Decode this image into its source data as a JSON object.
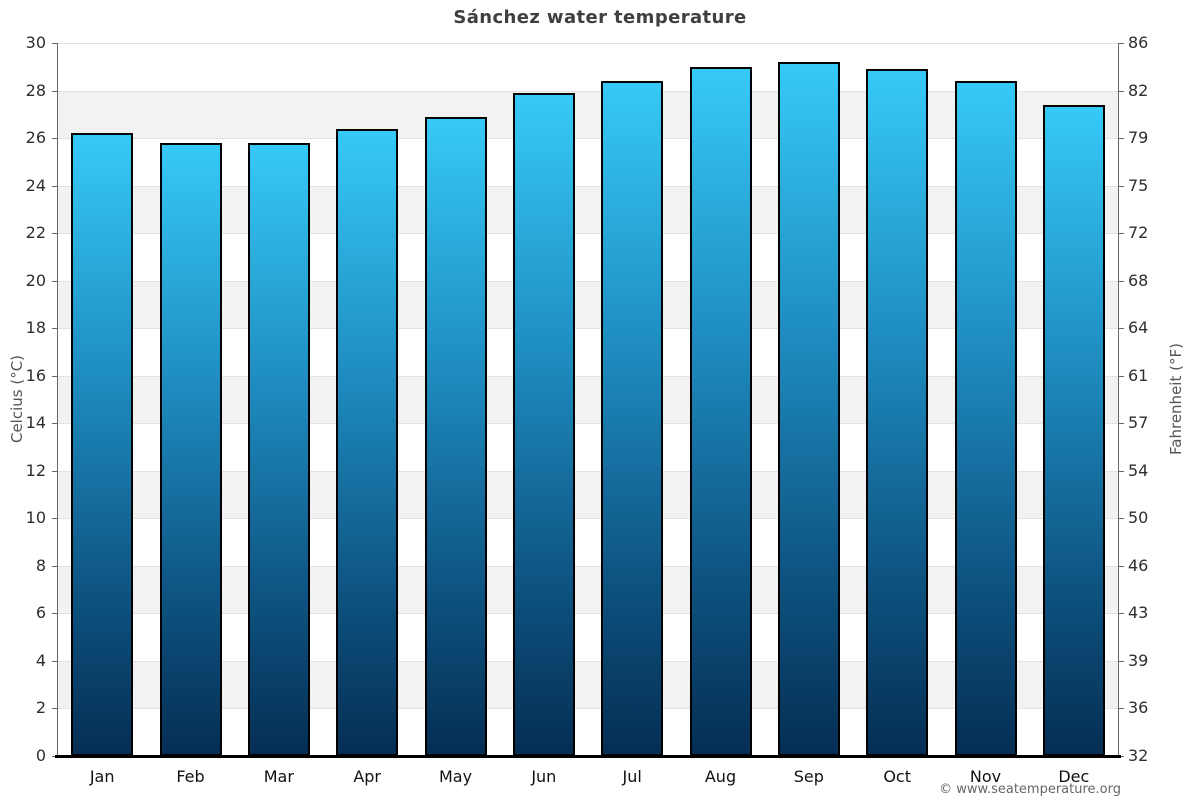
{
  "title": "Sánchez water temperature",
  "copyright": "© www.seatemperature.org",
  "axes": {
    "left_label": "Celcius (°C)",
    "right_label": "Fahrenheit (°F)"
  },
  "chart_data": {
    "type": "bar",
    "title": "Sánchez water temperature",
    "categories": [
      "Jan",
      "Feb",
      "Mar",
      "Apr",
      "May",
      "Jun",
      "Jul",
      "Aug",
      "Sep",
      "Oct",
      "Nov",
      "Dec"
    ],
    "values": [
      26.2,
      25.8,
      25.8,
      26.4,
      26.9,
      27.9,
      28.4,
      29.0,
      29.2,
      28.9,
      28.4,
      27.4
    ],
    "unit": "°C",
    "xlabel": "",
    "ylabel": "Celcius (°C)",
    "ylabel_right": "Fahrenheit (°F)",
    "ylim": [
      0,
      30
    ],
    "celsius_ticks": [
      0,
      2,
      4,
      6,
      8,
      10,
      12,
      14,
      16,
      18,
      20,
      22,
      24,
      26,
      28,
      30
    ],
    "fahrenheit_ticks": [
      32,
      36,
      39,
      43,
      46,
      50,
      54,
      57,
      61,
      64,
      68,
      72,
      75,
      79,
      82,
      86
    ],
    "grid": "alternating-horizontal-bands",
    "legend": "none",
    "colors": {
      "bar_gradient_top": "#36c9f8",
      "bar_gradient_upper_mid": "#1e8bbf",
      "bar_gradient_lower_mid": "#0d527f",
      "bar_gradient_bottom": "#052e54",
      "bar_border": "#000000",
      "band_gray": "#f2f2f2",
      "band_white": "#ffffff",
      "gridline": "#e2e2e2",
      "axis_line": "#666666",
      "baseline": "#000000",
      "title_text": "#3f3f3f",
      "tick_text": "#2e2e2e",
      "month_text": "#111111",
      "axis_title_text": "#555555",
      "copyright_text": "#666666"
    }
  }
}
